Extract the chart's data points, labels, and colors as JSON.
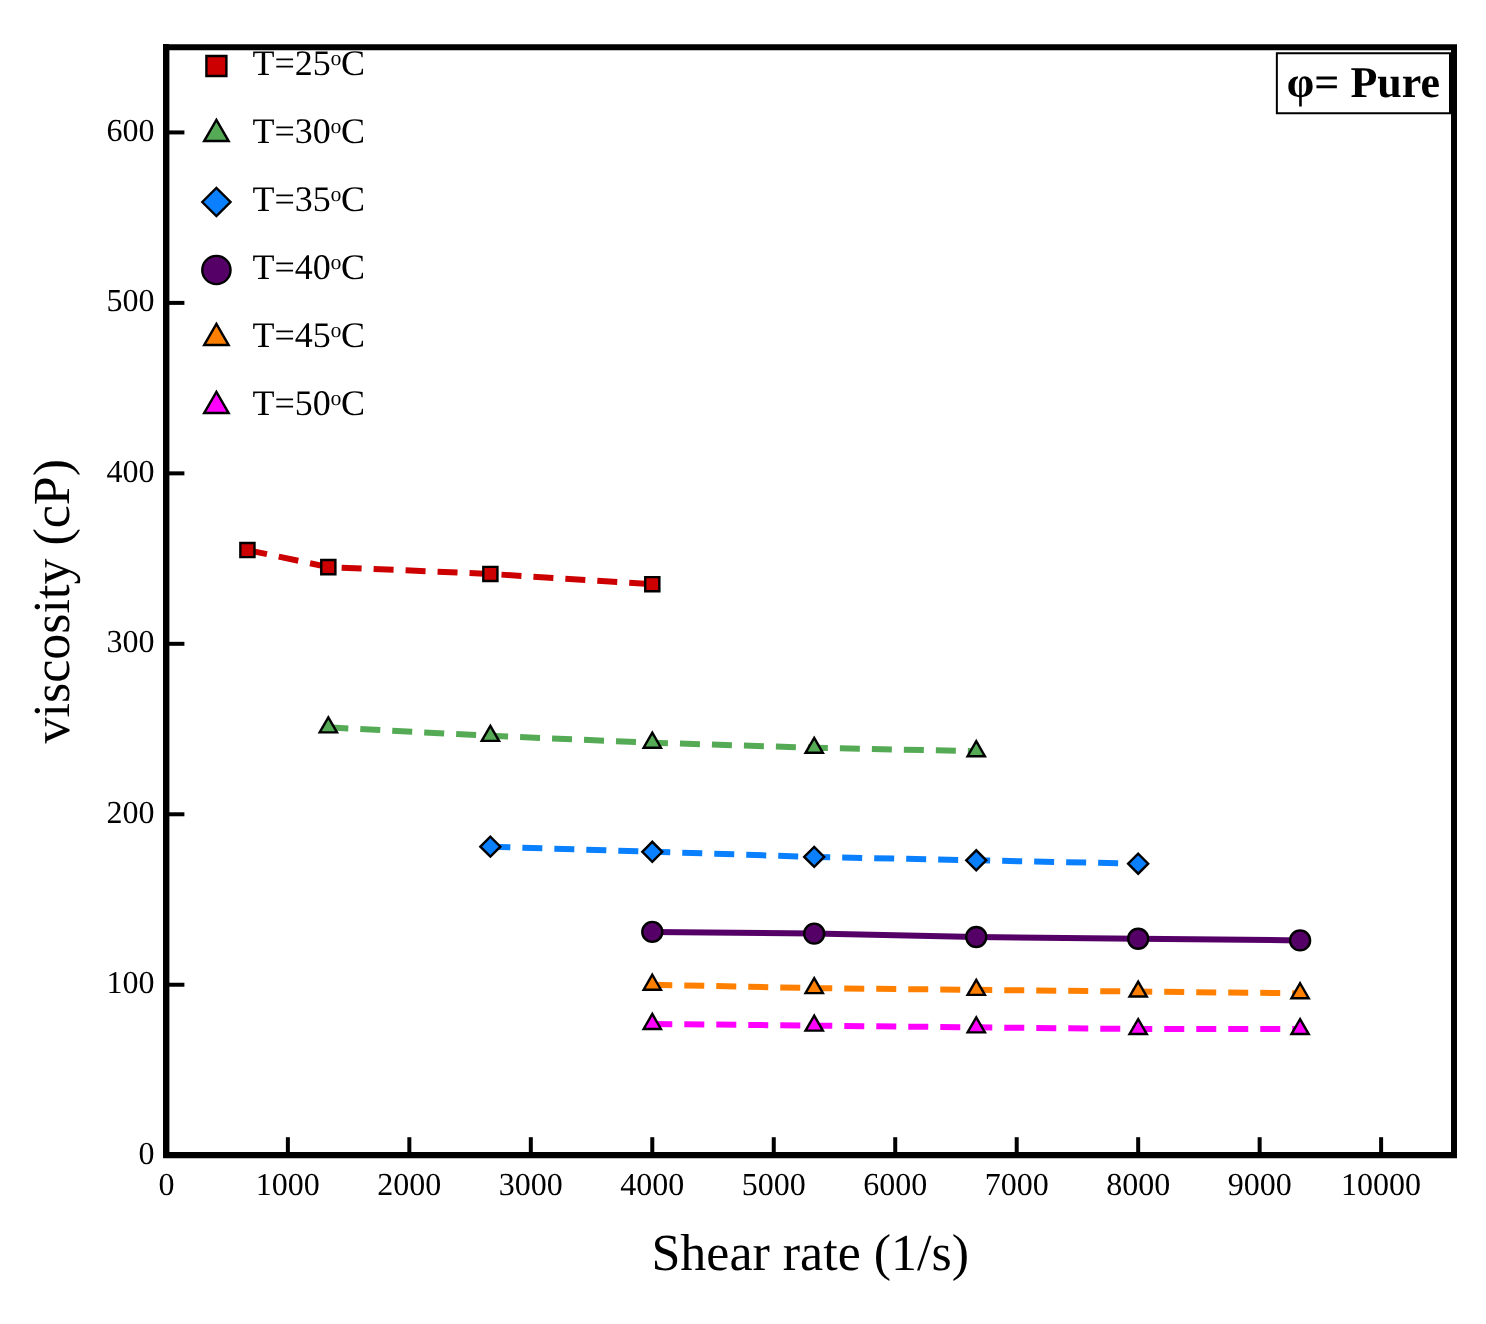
{
  "chart_data": {
    "type": "line",
    "xlabel": "Shear rate (1/s)",
    "ylabel": "viscosity (cP)",
    "annotations": [
      "φ= Pure"
    ],
    "xlim": [
      0,
      10600
    ],
    "xticks": [
      0,
      1000,
      2000,
      3000,
      4000,
      5000,
      6000,
      7000,
      8000,
      9000,
      10000
    ],
    "ylim": [
      0,
      650
    ],
    "yticks": [
      0,
      100,
      200,
      300,
      400,
      500,
      600
    ],
    "grid": false,
    "legend": "top left",
    "series": [
      {
        "name": "T=25ᵒC",
        "color": "#cc0000",
        "marker": "square",
        "line_style": "dashed",
        "x": [
          667,
          1333,
          2667,
          4000
        ],
        "values": [
          355,
          345,
          341,
          335
        ]
      },
      {
        "name": "T=30ᵒC",
        "color": "#55aa55",
        "marker": "triangle",
        "line_style": "dashed",
        "x": [
          1333,
          2667,
          4000,
          5333,
          6667
        ],
        "values": [
          251,
          246,
          242,
          239,
          237
        ]
      },
      {
        "name": "T=35ᵒC",
        "color": "#0a80ff",
        "marker": "diamond",
        "line_style": "dashed",
        "x": [
          2667,
          4000,
          5333,
          6667,
          8000
        ],
        "values": [
          181,
          178,
          175,
          173,
          171
        ]
      },
      {
        "name": "T=40ᵒC",
        "color": "#550066",
        "marker": "circle",
        "line_style": "solid",
        "x": [
          4000,
          5333,
          6667,
          8000,
          9333
        ],
        "values": [
          131,
          130,
          128,
          127,
          126
        ]
      },
      {
        "name": "T=45ᵒC",
        "color": "#ff8000",
        "marker": "triangle",
        "line_style": "dashed",
        "x": [
          4000,
          5333,
          6667,
          8000,
          9333
        ],
        "values": [
          100,
          98,
          97,
          96,
          95
        ]
      },
      {
        "name": "T=50ᵒC",
        "color": "#ff00ff",
        "marker": "triangle",
        "line_style": "dashed",
        "x": [
          4000,
          5333,
          6667,
          8000,
          9333
        ],
        "values": [
          77,
          76,
          75,
          74,
          74
        ]
      }
    ]
  }
}
